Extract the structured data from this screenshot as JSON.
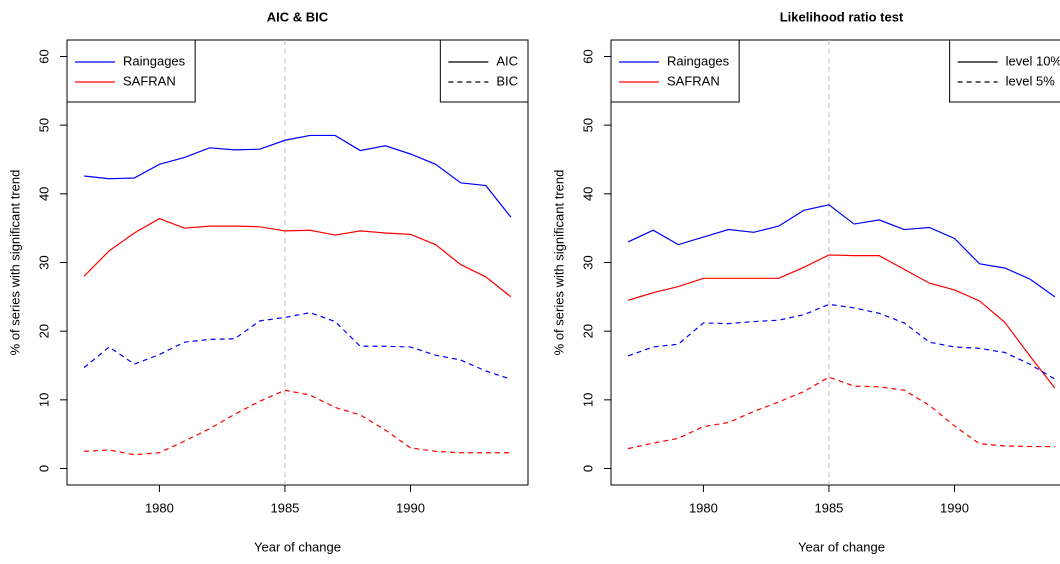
{
  "chart_data": [
    {
      "type": "line",
      "title": "AIC & BIC",
      "xlabel": "Year of change",
      "ylabel": "% of series with significant trend",
      "x": [
        1977,
        1978,
        1979,
        1980,
        1981,
        1982,
        1983,
        1984,
        1985,
        1986,
        1987,
        1988,
        1989,
        1990,
        1991,
        1992,
        1993,
        1994
      ],
      "xlim": [
        1976.32,
        1994.68
      ],
      "xticks": [
        1980,
        1985,
        1990
      ],
      "ylim": [
        -2.4,
        62.4
      ],
      "yticks": [
        0,
        10,
        20,
        30,
        40,
        50,
        60
      ],
      "vline": 1985,
      "series": [
        {
          "color": "#0000ff",
          "dash": "solid",
          "values": [
            42.6,
            42.2,
            42.3,
            44.3,
            45.3,
            46.7,
            46.4,
            46.5,
            47.8,
            48.5,
            48.5,
            46.3,
            47.0,
            45.8,
            44.3,
            41.6,
            41.2,
            36.6
          ]
        },
        {
          "color": "#ff0000",
          "dash": "solid",
          "values": [
            28.0,
            31.7,
            34.3,
            36.4,
            35.0,
            35.3,
            35.3,
            35.2,
            34.6,
            34.7,
            34.0,
            34.6,
            34.3,
            34.1,
            32.6,
            29.7,
            27.9,
            25.0
          ]
        },
        {
          "color": "#0000ff",
          "dash": "dashed",
          "values": [
            14.7,
            17.7,
            15.2,
            16.6,
            18.4,
            18.8,
            18.9,
            21.5,
            22.0,
            22.7,
            21.4,
            17.8,
            17.8,
            17.7,
            16.5,
            15.8,
            14.2,
            13.0
          ]
        },
        {
          "color": "#ff0000",
          "dash": "dashed",
          "values": [
            2.5,
            2.7,
            2.0,
            2.3,
            4.0,
            5.8,
            7.9,
            9.8,
            11.4,
            10.7,
            8.9,
            7.8,
            5.6,
            3.0,
            2.5,
            2.3,
            2.3,
            2.3
          ]
        }
      ],
      "legends": [
        {
          "position": "topleft",
          "entries": [
            {
              "name": "Raingages",
              "color": "#0000ff",
              "dash": "solid"
            },
            {
              "name": "SAFRAN",
              "color": "#ff0000",
              "dash": "solid"
            }
          ]
        },
        {
          "position": "topright",
          "entries": [
            {
              "name": "AIC",
              "color": "#000000",
              "dash": "solid"
            },
            {
              "name": "BIC",
              "color": "#000000",
              "dash": "dashed"
            }
          ]
        }
      ]
    },
    {
      "type": "line",
      "title": "Likelihood ratio test",
      "xlabel": "Year of change",
      "ylabel": "% of series with significant trend",
      "x": [
        1977,
        1978,
        1979,
        1980,
        1981,
        1982,
        1983,
        1984,
        1985,
        1986,
        1987,
        1988,
        1989,
        1990,
        1991,
        1992,
        1993,
        1994
      ],
      "xlim": [
        1976.32,
        1994.68
      ],
      "xticks": [
        1980,
        1985,
        1990
      ],
      "ylim": [
        -2.4,
        62.4
      ],
      "yticks": [
        0,
        10,
        20,
        30,
        40,
        50,
        60
      ],
      "vline": 1985,
      "series": [
        {
          "color": "#0000ff",
          "dash": "solid",
          "values": [
            33.0,
            34.7,
            32.6,
            33.7,
            34.8,
            34.4,
            35.3,
            37.6,
            38.4,
            35.6,
            36.2,
            34.8,
            35.1,
            33.5,
            29.8,
            29.2,
            27.6,
            25.0
          ]
        },
        {
          "color": "#ff0000",
          "dash": "solid",
          "values": [
            24.5,
            25.6,
            26.5,
            27.7,
            27.7,
            27.7,
            27.7,
            29.3,
            31.1,
            31.0,
            31.0,
            29.0,
            27.0,
            26.0,
            24.4,
            21.3,
            16.4,
            11.7
          ]
        },
        {
          "color": "#0000ff",
          "dash": "dashed",
          "values": [
            16.4,
            17.7,
            18.1,
            21.2,
            21.1,
            21.4,
            21.6,
            22.4,
            23.9,
            23.4,
            22.6,
            21.2,
            18.4,
            17.7,
            17.5,
            16.9,
            15.2,
            13.0
          ]
        },
        {
          "color": "#ff0000",
          "dash": "dashed",
          "values": [
            2.9,
            3.7,
            4.4,
            6.1,
            6.7,
            8.3,
            9.7,
            11.2,
            13.3,
            12.0,
            11.9,
            11.4,
            9.2,
            6.2,
            3.6,
            3.3,
            3.2,
            3.2
          ]
        }
      ],
      "legends": [
        {
          "position": "topleft",
          "entries": [
            {
              "name": "Raingages",
              "color": "#0000ff",
              "dash": "solid"
            },
            {
              "name": "SAFRAN",
              "color": "#ff0000",
              "dash": "solid"
            }
          ]
        },
        {
          "position": "topright",
          "entries": [
            {
              "name": "level 10%",
              "color": "#000000",
              "dash": "solid"
            },
            {
              "name": "level 5%",
              "color": "#000000",
              "dash": "dashed"
            }
          ]
        }
      ]
    }
  ]
}
